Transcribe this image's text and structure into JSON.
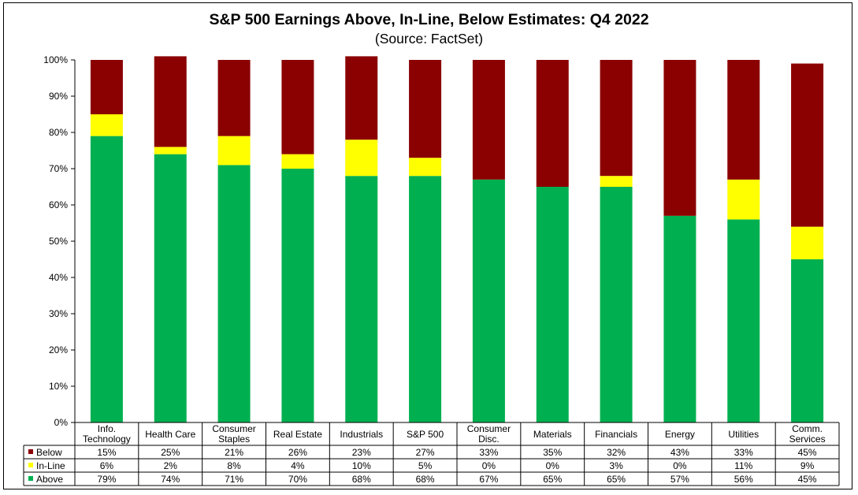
{
  "chart_data": {
    "type": "bar",
    "stacked": true,
    "percent_stacked": true,
    "title": "S&P 500 Earnings Above, In-Line, Below Estimates: Q4 2022",
    "subtitle": "(Source: FactSet)",
    "categories": [
      [
        "Info.",
        "Technology"
      ],
      [
        "Health Care"
      ],
      [
        "Consumer",
        "Staples"
      ],
      [
        "Real Estate"
      ],
      [
        "Industrials"
      ],
      [
        "S&P 500"
      ],
      [
        "Consumer",
        "Disc."
      ],
      [
        "Materials"
      ],
      [
        "Financials"
      ],
      [
        "Energy"
      ],
      [
        "Utilities"
      ],
      [
        "Comm.",
        "Services"
      ]
    ],
    "series": [
      {
        "name": "Above",
        "color": "#00B050",
        "values": [
          79,
          74,
          71,
          70,
          68,
          68,
          67,
          65,
          65,
          57,
          56,
          45
        ]
      },
      {
        "name": "In-Line",
        "color": "#FFFF00",
        "values": [
          6,
          2,
          8,
          4,
          10,
          5,
          0,
          0,
          3,
          0,
          11,
          9
        ]
      },
      {
        "name": "Below",
        "color": "#8B0000",
        "values": [
          15,
          25,
          21,
          26,
          23,
          27,
          33,
          35,
          32,
          43,
          33,
          45
        ]
      }
    ],
    "table_order": [
      "Below",
      "In-Line",
      "Above"
    ],
    "ylim": [
      0,
      100
    ],
    "yticks": [
      "0%",
      "10%",
      "20%",
      "30%",
      "40%",
      "50%",
      "60%",
      "70%",
      "80%",
      "90%",
      "100%"
    ],
    "xlabel": "",
    "ylabel": "",
    "grid": false,
    "legend": "data-table"
  }
}
